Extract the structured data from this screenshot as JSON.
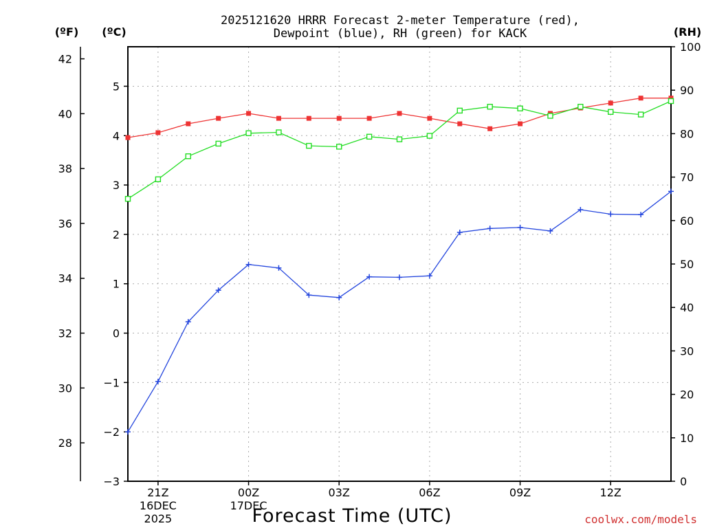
{
  "chart_data": {
    "type": "line",
    "title_line1": "2025121620 HRRR Forecast 2-meter Temperature (red),",
    "title_line2": "Dewpoint (blue), RH (green) for KACK",
    "xlabel": "Forecast Time (UTC)",
    "credit": "coolwx.com/models",
    "unit_labels": {
      "fahrenheit": "(ºF)",
      "celsius": "(ºC)",
      "rh": "(RH)"
    },
    "x_hours": [
      0,
      1,
      2,
      3,
      4,
      5,
      6,
      7,
      8,
      9,
      10,
      11,
      12,
      13,
      14,
      15,
      16,
      17,
      18
    ],
    "x_ticks": [
      {
        "hour": 1,
        "lines": [
          "21Z",
          "16DEC",
          "2025"
        ]
      },
      {
        "hour": 4,
        "lines": [
          "00Z",
          "17DEC"
        ]
      },
      {
        "hour": 7,
        "lines": [
          "03Z"
        ]
      },
      {
        "hour": 10,
        "lines": [
          "06Z"
        ]
      },
      {
        "hour": 13,
        "lines": [
          "09Z"
        ]
      },
      {
        "hour": 16,
        "lines": [
          "12Z"
        ]
      }
    ],
    "celsius_axis": {
      "range": [
        -3,
        5.8
      ],
      "ticks": [
        -3,
        -2,
        -1,
        0,
        1,
        2,
        3,
        4,
        5
      ]
    },
    "fahrenheit_axis": {
      "range": [
        26.6,
        42.44
      ],
      "ticks": [
        28,
        30,
        32,
        34,
        36,
        38,
        40,
        42
      ]
    },
    "rh_axis": {
      "range": [
        0,
        100
      ],
      "ticks": [
        0,
        10,
        20,
        30,
        40,
        50,
        60,
        70,
        80,
        90,
        100
      ]
    },
    "series": [
      {
        "name": "Temperature",
        "axis": "celsius",
        "color": "#ee3333",
        "marker": "filled-square",
        "values": [
          3.96,
          4.06,
          4.24,
          4.35,
          4.45,
          4.35,
          4.35,
          4.35,
          4.35,
          4.45,
          4.35,
          4.24,
          4.14,
          4.24,
          4.45,
          4.56,
          4.66,
          4.76,
          4.76
        ]
      },
      {
        "name": "Dewpoint",
        "axis": "celsius",
        "color": "#2244dd",
        "marker": "plus",
        "values": [
          -2.0,
          -0.98,
          0.23,
          0.87,
          1.39,
          1.32,
          0.77,
          0.72,
          1.14,
          1.13,
          1.16,
          2.04,
          2.12,
          2.14,
          2.07,
          2.5,
          2.41,
          2.4,
          2.87
        ]
      },
      {
        "name": "RH",
        "axis": "rh",
        "color": "#22dd22",
        "marker": "open-square",
        "values": [
          65,
          69.5,
          74.8,
          77.7,
          80.1,
          80.3,
          77.2,
          77.0,
          79.3,
          78.7,
          79.5,
          85.3,
          86.2,
          85.8,
          84.1,
          86.2,
          85.0,
          84.4,
          87.5
        ]
      }
    ]
  }
}
